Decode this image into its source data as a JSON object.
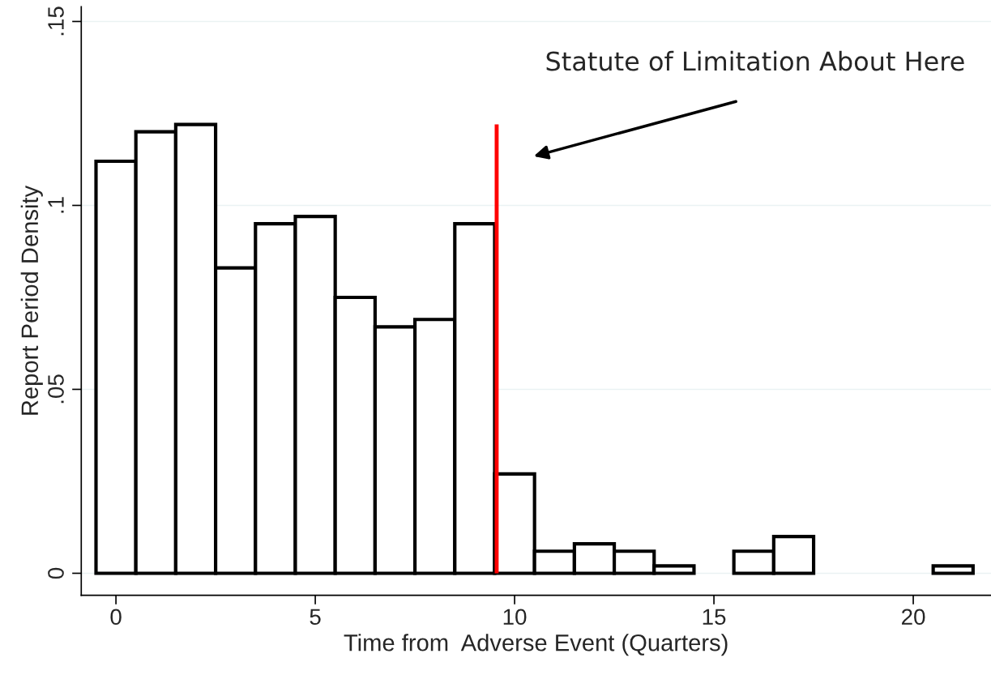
{
  "chart_data": {
    "type": "histogram",
    "xlabel": "Time from  Adverse Event (Quarters)",
    "ylabel": "Report Period Density",
    "bins": [
      -0.5,
      0.5,
      1.5,
      2.5,
      3.5,
      4.5,
      5.5,
      6.5,
      7.5,
      8.5,
      9.5,
      10.5,
      11.5,
      12.5,
      13.5,
      14.5,
      15.5,
      16.5,
      17.5,
      18.5,
      19.5,
      20.5,
      21.5
    ],
    "values": [
      0.112,
      0.12,
      0.122,
      0.083,
      0.095,
      0.097,
      0.075,
      0.067,
      0.069,
      0.095,
      0.027,
      0.006,
      0.008,
      0.006,
      0.002,
      0,
      0.006,
      0.01,
      0,
      0,
      0,
      0.002
    ],
    "color": "#ffffff",
    "xlim": [
      -0.87,
      21.95
    ],
    "xticks": [
      0,
      5,
      10,
      15,
      20
    ],
    "ylim": [
      -0.006,
      0.154
    ],
    "yticks": [
      {
        "value": 0,
        "label": "0"
      },
      {
        "value": 0.05,
        "label": ".05"
      },
      {
        "value": 0.1,
        "label": ".1"
      },
      {
        "value": 0.15,
        "label": ".15"
      }
    ],
    "grid": "y",
    "ref_lines": [
      {
        "axis": "x",
        "value": 9.55,
        "color": "#ff0000"
      }
    ],
    "annotations": [
      "Statute of Limitation About Here"
    ]
  }
}
